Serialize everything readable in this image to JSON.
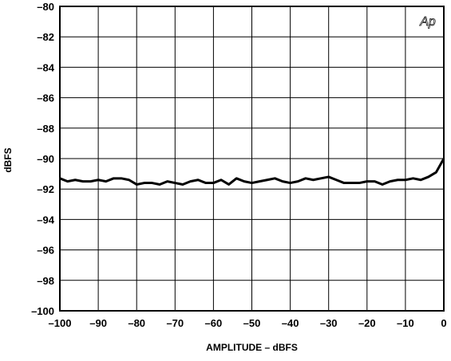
{
  "chart_data": {
    "type": "line",
    "title": "",
    "xlabel": "AMPLITUDE – dBFS",
    "ylabel": "dBFS",
    "xlim": [
      -100,
      0
    ],
    "ylim": [
      -100,
      -80
    ],
    "grid": true,
    "x_ticks": [
      -100,
      -90,
      -80,
      -70,
      -60,
      -50,
      -40,
      -30,
      -20,
      -10,
      0
    ],
    "y_ticks": [
      -80,
      -82,
      -84,
      -86,
      -88,
      -90,
      -92,
      -94,
      -96,
      -98,
      -100
    ],
    "x_tick_labels": [
      "–100",
      "–90",
      "–80",
      "–70",
      "–60",
      "–50",
      "–40",
      "–30",
      "–20",
      "–10",
      "0"
    ],
    "y_tick_labels": [
      "–80",
      "–82",
      "–84",
      "–86",
      "–88",
      "–90",
      "–92",
      "–94",
      "–96",
      "–98",
      "–100"
    ],
    "logo": "Ap",
    "series": [
      {
        "x": [
          -100,
          -98,
          -96,
          -94,
          -92,
          -90,
          -88,
          -86,
          -84,
          -82,
          -80,
          -78,
          -76,
          -74,
          -72,
          -70,
          -68,
          -66,
          -64,
          -62,
          -60,
          -58,
          -56,
          -54,
          -52,
          -50,
          -48,
          -46,
          -44,
          -42,
          -40,
          -38,
          -36,
          -34,
          -32,
          -30,
          -28,
          -26,
          -24,
          -22,
          -20,
          -18,
          -16,
          -14,
          -12,
          -10,
          -8,
          -6,
          -4,
          -2,
          0
        ],
        "values": [
          -91.3,
          -91.5,
          -91.4,
          -91.5,
          -91.5,
          -91.4,
          -91.5,
          -91.3,
          -91.3,
          -91.4,
          -91.7,
          -91.6,
          -91.6,
          -91.7,
          -91.5,
          -91.6,
          -91.7,
          -91.5,
          -91.4,
          -91.6,
          -91.6,
          -91.4,
          -91.7,
          -91.3,
          -91.5,
          -91.6,
          -91.5,
          -91.4,
          -91.3,
          -91.5,
          -91.6,
          -91.5,
          -91.3,
          -91.4,
          -91.3,
          -91.2,
          -91.4,
          -91.6,
          -91.6,
          -91.6,
          -91.5,
          -91.5,
          -91.7,
          -91.5,
          -91.4,
          -91.4,
          -91.3,
          -91.4,
          -91.2,
          -90.9,
          -90.0
        ]
      }
    ]
  }
}
